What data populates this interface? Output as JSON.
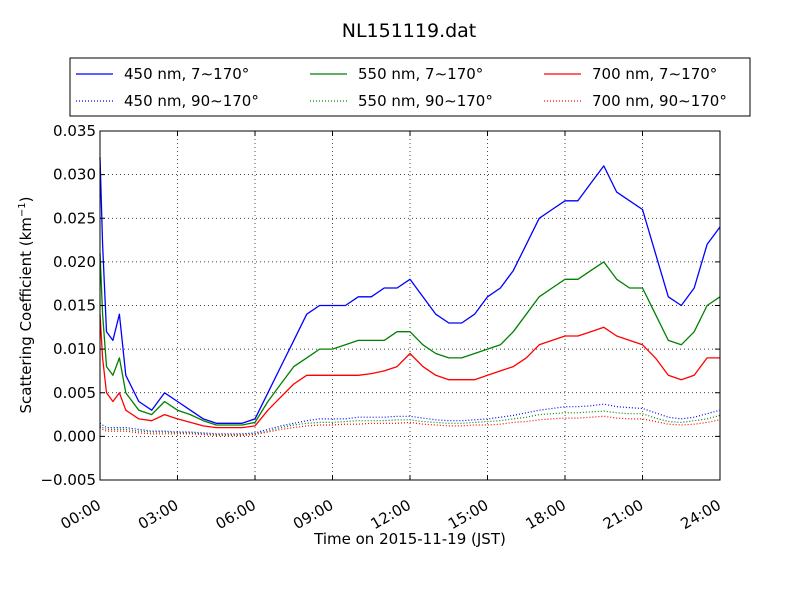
{
  "chart_data": {
    "type": "line",
    "title": "NL151119.dat",
    "xlabel": "Time on 2015-11-19 (JST)",
    "ylabel_main": "Scattering Coefficient (km",
    "ylabel_sup": "−1",
    "ylabel_end": ")",
    "xlim": [
      0,
      24
    ],
    "ylim": [
      -0.005,
      0.035
    ],
    "xticks": [
      0,
      3,
      6,
      9,
      12,
      15,
      18,
      21,
      24
    ],
    "xtick_labels": [
      "00:00",
      "03:00",
      "06:00",
      "09:00",
      "12:00",
      "15:00",
      "18:00",
      "21:00",
      "24:00"
    ],
    "yticks": [
      -0.005,
      0,
      0.005,
      0.01,
      0.015,
      0.02,
      0.025,
      0.03,
      0.035
    ],
    "ytick_labels": [
      "−0.005",
      "0.000",
      "0.005",
      "0.010",
      "0.015",
      "0.020",
      "0.025",
      "0.030",
      "0.035"
    ],
    "grid": true,
    "legend_position": "top",
    "x_hours": [
      0,
      0.1,
      0.25,
      0.5,
      0.75,
      1,
      1.5,
      2,
      2.5,
      3,
      3.5,
      4,
      4.5,
      5,
      5.5,
      6,
      6.5,
      7,
      7.5,
      8,
      8.5,
      9,
      9.5,
      10,
      10.5,
      11,
      11.5,
      12,
      12.5,
      13,
      13.5,
      14,
      14.5,
      15,
      15.5,
      16,
      16.5,
      17,
      17.5,
      18,
      18.5,
      19,
      19.5,
      20,
      20.5,
      21,
      21.5,
      22,
      22.5,
      23,
      23.5,
      24
    ],
    "series": [
      {
        "name": "450 nm, 7∼170°",
        "color": "#0000ff",
        "style": "solid",
        "values": [
          0.032,
          0.022,
          0.012,
          0.011,
          0.014,
          0.007,
          0.004,
          0.003,
          0.005,
          0.004,
          0.003,
          0.002,
          0.0015,
          0.0015,
          0.0015,
          0.002,
          0.005,
          0.008,
          0.011,
          0.014,
          0.015,
          0.015,
          0.015,
          0.016,
          0.016,
          0.017,
          0.017,
          0.018,
          0.016,
          0.014,
          0.013,
          0.013,
          0.014,
          0.016,
          0.017,
          0.019,
          0.022,
          0.025,
          0.026,
          0.027,
          0.027,
          0.029,
          0.031,
          0.028,
          0.027,
          0.026,
          0.021,
          0.016,
          0.015,
          0.017,
          0.022,
          0.024
        ]
      },
      {
        "name": "550 nm, 7∼170°",
        "color": "#008000",
        "style": "solid",
        "values": [
          0.021,
          0.014,
          0.008,
          0.007,
          0.009,
          0.005,
          0.003,
          0.0025,
          0.004,
          0.003,
          0.0025,
          0.0018,
          0.0013,
          0.0013,
          0.0013,
          0.0016,
          0.004,
          0.006,
          0.008,
          0.009,
          0.01,
          0.01,
          0.0105,
          0.011,
          0.011,
          0.011,
          0.012,
          0.012,
          0.0105,
          0.0095,
          0.009,
          0.009,
          0.0095,
          0.01,
          0.0105,
          0.012,
          0.014,
          0.016,
          0.017,
          0.018,
          0.018,
          0.019,
          0.02,
          0.018,
          0.017,
          0.017,
          0.014,
          0.011,
          0.0105,
          0.012,
          0.015,
          0.016
        ]
      },
      {
        "name": "700 nm, 7∼170°",
        "color": "#ff0000",
        "style": "solid",
        "values": [
          0.014,
          0.009,
          0.005,
          0.004,
          0.005,
          0.003,
          0.002,
          0.0018,
          0.0025,
          0.002,
          0.0016,
          0.0012,
          0.001,
          0.001,
          0.001,
          0.0012,
          0.003,
          0.0045,
          0.006,
          0.007,
          0.007,
          0.007,
          0.007,
          0.007,
          0.0072,
          0.0075,
          0.008,
          0.0095,
          0.008,
          0.007,
          0.0065,
          0.0065,
          0.0065,
          0.007,
          0.0075,
          0.008,
          0.009,
          0.0105,
          0.011,
          0.0115,
          0.0115,
          0.012,
          0.0125,
          0.0115,
          0.011,
          0.0105,
          0.009,
          0.007,
          0.0065,
          0.007,
          0.009,
          0.009
        ]
      },
      {
        "name": "450 nm, 90∼170°",
        "color": "#0000ff",
        "style": "dotted",
        "values": [
          0.0015,
          0.0013,
          0.001,
          0.001,
          0.001,
          0.001,
          0.0008,
          0.0006,
          0.0006,
          0.0005,
          0.0005,
          0.0004,
          0.0003,
          0.0003,
          0.0003,
          0.0004,
          0.0008,
          0.0012,
          0.0015,
          0.0018,
          0.002,
          0.002,
          0.002,
          0.0022,
          0.0022,
          0.0022,
          0.0023,
          0.0023,
          0.0021,
          0.0019,
          0.0018,
          0.0018,
          0.0019,
          0.002,
          0.0022,
          0.0024,
          0.0027,
          0.003,
          0.0032,
          0.0034,
          0.0034,
          0.0035,
          0.0037,
          0.0034,
          0.0033,
          0.0032,
          0.0027,
          0.0022,
          0.002,
          0.0022,
          0.0026,
          0.003
        ]
      },
      {
        "name": "550 nm, 90∼170°",
        "color": "#008000",
        "style": "dotted",
        "values": [
          0.0012,
          0.001,
          0.0008,
          0.0008,
          0.0008,
          0.0008,
          0.0006,
          0.0005,
          0.0005,
          0.0004,
          0.0004,
          0.0003,
          0.0002,
          0.0002,
          0.0002,
          0.0003,
          0.0006,
          0.001,
          0.0013,
          0.0015,
          0.0016,
          0.0016,
          0.0017,
          0.0018,
          0.0018,
          0.0018,
          0.0019,
          0.0019,
          0.0017,
          0.0016,
          0.0015,
          0.0015,
          0.0016,
          0.0017,
          0.0018,
          0.002,
          0.0022,
          0.0025,
          0.0026,
          0.0027,
          0.0027,
          0.0028,
          0.0029,
          0.0027,
          0.0026,
          0.0026,
          0.0021,
          0.0017,
          0.0016,
          0.0018,
          0.002,
          0.0024
        ]
      },
      {
        "name": "700 nm, 90∼170°",
        "color": "#ff0000",
        "style": "dotted",
        "values": [
          0.001,
          0.0008,
          0.0006,
          0.0006,
          0.0006,
          0.0006,
          0.0004,
          0.0003,
          0.0003,
          0.0003,
          0.0003,
          0.0002,
          0.0001,
          0.0001,
          0.0001,
          0.0002,
          0.0005,
          0.0008,
          0.001,
          0.0012,
          0.0013,
          0.0013,
          0.0014,
          0.0014,
          0.0015,
          0.0015,
          0.0015,
          0.0016,
          0.0014,
          0.0013,
          0.0012,
          0.0012,
          0.0013,
          0.0013,
          0.0014,
          0.0016,
          0.0017,
          0.0019,
          0.002,
          0.0021,
          0.0021,
          0.0022,
          0.0023,
          0.0021,
          0.002,
          0.002,
          0.0017,
          0.0014,
          0.0013,
          0.0014,
          0.0016,
          0.0019
        ]
      }
    ]
  }
}
